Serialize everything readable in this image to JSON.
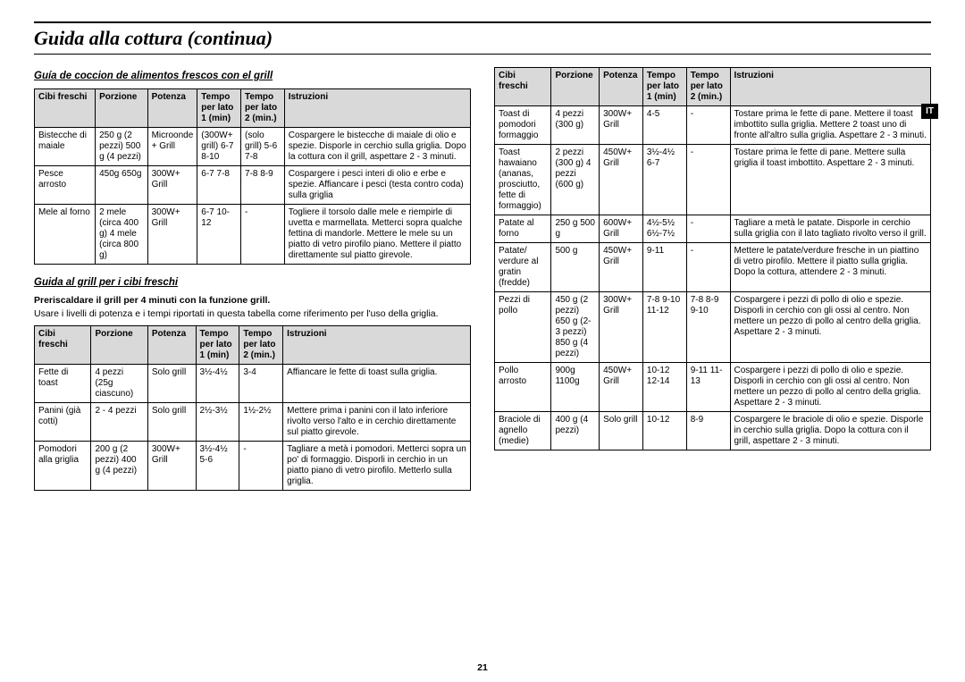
{
  "page": {
    "title": "Guida alla cottura (continua)",
    "number": "21",
    "langBadge": "IT"
  },
  "styles": {
    "headerBg": "#d9d9d9",
    "borderColor": "#000000",
    "bodyFontSize": 10,
    "titleFontSize": 22
  },
  "section1": {
    "title": "Guía de coccion de alimentos frescos con el grill",
    "columns": [
      "Cibi freschi",
      "Porzione",
      "Potenza",
      "Tempo per lato 1 (min)",
      "Tempo per lato 2 (min.)",
      "Istruzioni"
    ],
    "rows": [
      [
        "Bistecche di maiale",
        "250 g (2 pezzi) 500 g (4 pezzi)",
        "Microonde + Grill",
        "(300W+ grill) 6-7 8-10",
        "(solo grill) 5-6 7-8",
        "Cospargere le bistecche di maiale di olio e spezie. Disporle in cerchio sulla griglia. Dopo la cottura con il grill, aspettare 2 - 3 minuti."
      ],
      [
        "Pesce arrosto",
        "450g 650g",
        "300W+ Grill",
        "6-7 7-8",
        "7-8 8-9",
        "Cospargere i pesci interi di olio e erbe e spezie. Affiancare i pesci (testa contro coda) sulla griglia"
      ],
      [
        "Mele al forno",
        "2 mele (circa 400 g) 4 mele (circa 800 g)",
        "300W+ Grill",
        "6-7  10-12",
        "-",
        "Togliere il torsolo dalle mele e riempirle di uvetta e marmellata. Metterci sopra qualche fettina di mandorle. Mettere le mele su un piatto di vetro pirofilo piano. Mettere il piatto direttamente sul piatto girevole."
      ]
    ]
  },
  "section2": {
    "title": "Guida al grill per i cibi freschi",
    "introBold": "Preriscaldare il grill per 4 minuti con la funzione grill.",
    "intro": "Usare i livelli di potenza e i tempi riportati in questa tabella come riferimento per l'uso della griglia.",
    "columns": [
      "Cibi freschi",
      "Porzione",
      "Potenza",
      "Tempo per lato 1 (min)",
      "Tempo per lato 2 (min.)",
      "Istruzioni"
    ],
    "rows": [
      [
        "Fette di toast",
        "4 pezzi (25g ciascuno)",
        "Solo grill",
        "3½-4½",
        "3-4",
        "Affiancare le fette di toast sulla griglia."
      ],
      [
        "Panini (già cotti)",
        "2 - 4 pezzi",
        "Solo grill",
        "2½-3½",
        "1½-2½",
        "Mettere prima i panini con il lato inferiore rivolto verso l'alto e in cerchio direttamente sul piatto girevole."
      ],
      [
        "Pomodori alla griglia",
        "200 g (2 pezzi) 400 g (4 pezzi)",
        "300W+ Grill",
        "3½-4½  5-6",
        "-",
        "Tagliare a metà i pomodori. Metterci sopra un po' di formaggio. Disporli in cerchio in un piatto piano di vetro pirofilo. Metterlo sulla griglia."
      ]
    ]
  },
  "rightTable": {
    "columns": [
      "Cibi freschi",
      "Porzione",
      "Potenza",
      "Tempo per lato 1 (min)",
      "Tempo per lato 2 (min.)",
      "Istruzioni"
    ],
    "rows": [
      [
        "Toast di pomodori formaggio",
        "4 pezzi (300 g)",
        "300W+ Grill",
        "4-5",
        "-",
        "Tostare prima le fette di pane. Mettere il toast imbottito sulla griglia. Mettere 2 toast uno di fronte all'altro sulla griglia. Aspettare 2 - 3 minuti."
      ],
      [
        "Toast hawaiano (ananas, prosciutto, fette di formaggio)",
        "2 pezzi (300 g) 4 pezzi (600 g)",
        "450W+ Grill",
        "3½-4½  6-7",
        "-",
        "Tostare prima le fette di pane. Mettere sulla griglia il toast imbottito. Aspettare 2 - 3 minuti."
      ],
      [
        "Patate al forno",
        "250 g 500 g",
        "600W+ Grill",
        "4½-5½ 6½-7½",
        "-",
        "Tagliare a metà le patate. Disporle in cerchio sulla griglia con il lato tagliato rivolto verso il grill."
      ],
      [
        "Patate/ verdure al gratin (fredde)",
        "500 g",
        "450W+ Grill",
        "9-11",
        "-",
        "Mettere le patate/verdure fresche in un piattino di vetro pirofilo. Mettere il piatto sulla griglia. Dopo la cottura, attendere 2 - 3 minuti."
      ],
      [
        "Pezzi di pollo",
        "450 g (2 pezzi) 650 g (2-3 pezzi) 850 g (4 pezzi)",
        "300W+ Grill",
        "7-8  9-10  11-12",
        "7-8  8-9  9-10",
        "Cospargere i pezzi di pollo di olio e spezie. Disporli in cerchio con gli ossi al centro. Non mettere un pezzo di pollo al centro della griglia. Aspettare 2 - 3 minuti."
      ],
      [
        "Pollo arrosto",
        "900g 1100g",
        "450W+ Grill",
        "10-12 12-14",
        "9-11 11-13",
        "Cospargere i pezzi di pollo di olio e spezie. Disporli in cerchio con gli ossi al centro. Non mettere un pezzo di pollo al centro della griglia. Aspettare 2 - 3 minuti."
      ],
      [
        "Braciole di agnello (medie)",
        "400 g (4 pezzi)",
        "Solo grill",
        "10-12",
        "8-9",
        "Cospargere le braciole di olio e spezie. Disporle in cerchio sulla griglia. Dopo la cottura con il grill, aspettare 2 - 3 minuti."
      ]
    ]
  }
}
